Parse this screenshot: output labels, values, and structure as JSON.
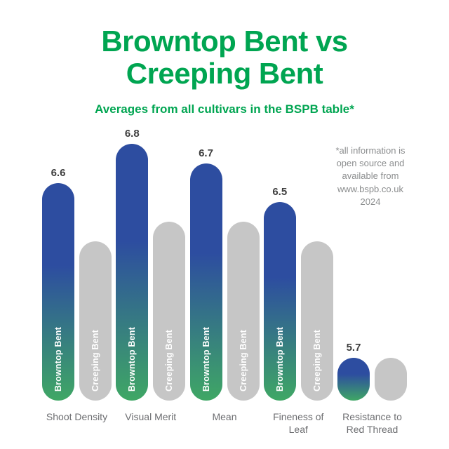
{
  "header": {
    "title_line1": "Browntop Bent vs",
    "title_line2": "Creeping Bent",
    "subtitle": "Averages from all cultivars in the BSPB table*"
  },
  "note": {
    "text": "*all information is\nopen source and\navailable from\nwww.bspb.co.uk\n2024"
  },
  "colors": {
    "background": "#FFFFFF",
    "title_green": "#00A551",
    "bar_gradient_top": "#2D4DA0",
    "bar_gradient_bottom": "#3FA765",
    "bar_gray": "#C6C6C6",
    "value_label": "#3D3D3D",
    "category_label": "#6D6E71",
    "note_gray": "#8B8D8E",
    "bar_inner_text": "#FFFFFF"
  },
  "chart_data": {
    "type": "bar",
    "title": "Browntop Bent vs Creeping Bent",
    "subtitle": "Averages from all cultivars in the BSPB table*",
    "categories": [
      "Shoot Density",
      "Visual Merit",
      "Mean",
      "Fineness of Leaf",
      "Resistance to Red Thread"
    ],
    "series": [
      {
        "name": "Browntop Bent",
        "values": [
          6.6,
          6.8,
          6.7,
          6.5,
          5.7
        ],
        "value_labels_shown": true,
        "values_estimated": false,
        "style": "blue-green-gradient"
      },
      {
        "name": "Creeping Bent",
        "values": [
          6.3,
          6.4,
          6.4,
          6.3,
          5.7
        ],
        "value_labels_shown": false,
        "values_estimated": true,
        "style": "gray"
      }
    ],
    "ylim": [
      5.48,
      6.9
    ],
    "grid": false,
    "value_axis_shown": false,
    "legend": "series names printed vertically inside bars",
    "bar_inner_labels": [
      "Browntop Bent",
      "Creeping Bent"
    ]
  }
}
